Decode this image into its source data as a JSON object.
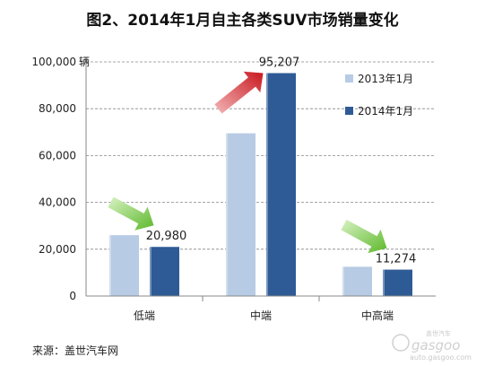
{
  "title": "图2、2014年1月自主各类SUV市场销量变化",
  "source": "来源：盖世汽车网",
  "watermark": {
    "line1": "盖世汽车",
    "line2": "gasgoo",
    "line3": "auto.gasgoo.com"
  },
  "colors": {
    "series_2013": "#b7cbe4",
    "series_2014": "#2e5b95",
    "arrow_red": "#c8171d",
    "arrow_green": "#6cc33a",
    "grid": "#888888"
  },
  "chart_data": {
    "type": "bar",
    "title": "图2、2014年1月自主各类SUV市场销量变化",
    "categories": [
      "低端",
      "中端",
      "中高端"
    ],
    "unit": "辆",
    "ylim": [
      0,
      100000
    ],
    "yticks": [
      "0",
      "20,000",
      "40,000",
      "60,000",
      "80,000",
      "100,000"
    ],
    "ytick_values": [
      0,
      20000,
      40000,
      60000,
      80000,
      100000
    ],
    "grid": true,
    "legend_position": "top-right",
    "series": [
      {
        "name": "2013年1月",
        "values": [
          26000,
          69500,
          12500
        ]
      },
      {
        "name": "2014年1月",
        "values": [
          20980,
          95207,
          11274
        ]
      }
    ],
    "data_labels": [
      "20,980",
      "95,207",
      "11,274"
    ],
    "annotations": [
      "down",
      "up",
      "down"
    ]
  }
}
